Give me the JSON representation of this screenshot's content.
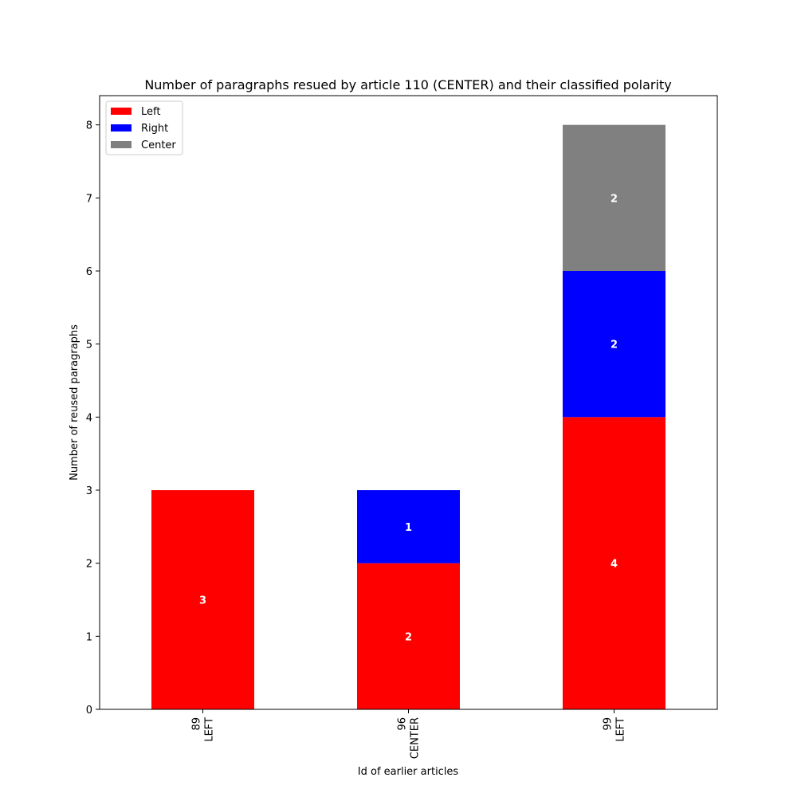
{
  "chart_data": {
    "type": "bar",
    "stacked": true,
    "title": "Number of paragraphs resued by article 110 (CENTER) and their classified polarity",
    "xlabel": "Id of earlier articles",
    "ylabel": "Number of reused paragraphs",
    "categories": [
      {
        "id": "89",
        "polarity": "LEFT"
      },
      {
        "id": "96",
        "polarity": "CENTER"
      },
      {
        "id": "99",
        "polarity": "LEFT"
      }
    ],
    "series": [
      {
        "name": "Left",
        "color": "#ff0000",
        "values": [
          3,
          2,
          4
        ]
      },
      {
        "name": "Right",
        "color": "#0000ff",
        "values": [
          0,
          1,
          2
        ]
      },
      {
        "name": "Center",
        "color": "#808080",
        "values": [
          0,
          0,
          2
        ]
      }
    ],
    "ylim": [
      0,
      8.4
    ],
    "yticks": [
      0,
      1,
      2,
      3,
      4,
      5,
      6,
      7,
      8
    ],
    "grid": false,
    "legend_position": "top-left"
  }
}
